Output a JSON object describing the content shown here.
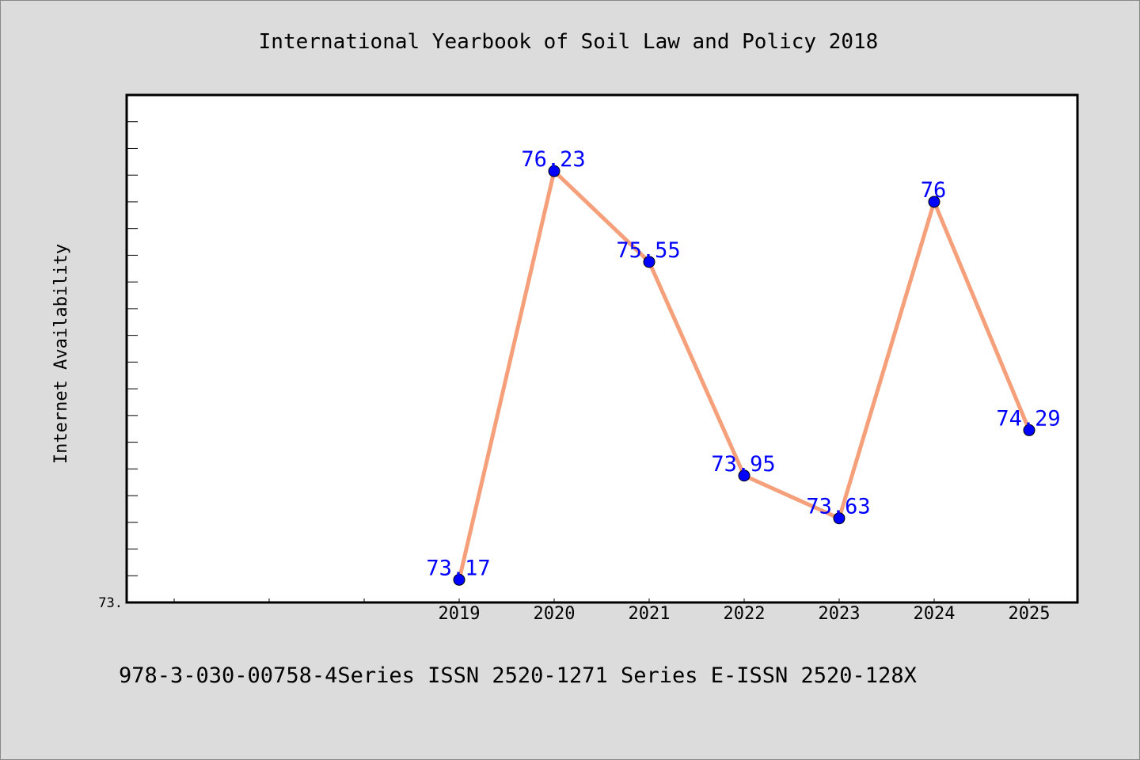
{
  "chart_data": {
    "type": "line",
    "title": "International Yearbook of Soil Law and Policy 2018",
    "subtitle": "978-3-030-00758-4Series ISSN 2520-1271 Series E-ISSN 2520-128X",
    "xlabel": "",
    "ylabel": "Internet Availability",
    "categories": [
      "2019",
      "2020",
      "2021",
      "2022",
      "2023",
      "2024",
      "2025"
    ],
    "series": [
      {
        "values": [
          73.17,
          76.23,
          75.55,
          73.95,
          73.63,
          76,
          74.29
        ],
        "data_labels": [
          "73.17",
          "76.23",
          "75.55",
          "73.95",
          "73.63",
          "76",
          "74.29"
        ]
      }
    ],
    "y_tick_labels": [
      "73."
    ],
    "ylim": [
      73.0,
      76.8
    ],
    "legend": "none",
    "grid": false,
    "colors": {
      "background": "#dcdcdc",
      "plot_background": "#ffffff",
      "line": "#f5a07a",
      "marker": "#0000ff",
      "data_label": "#0000ff",
      "text": "#000000"
    }
  }
}
